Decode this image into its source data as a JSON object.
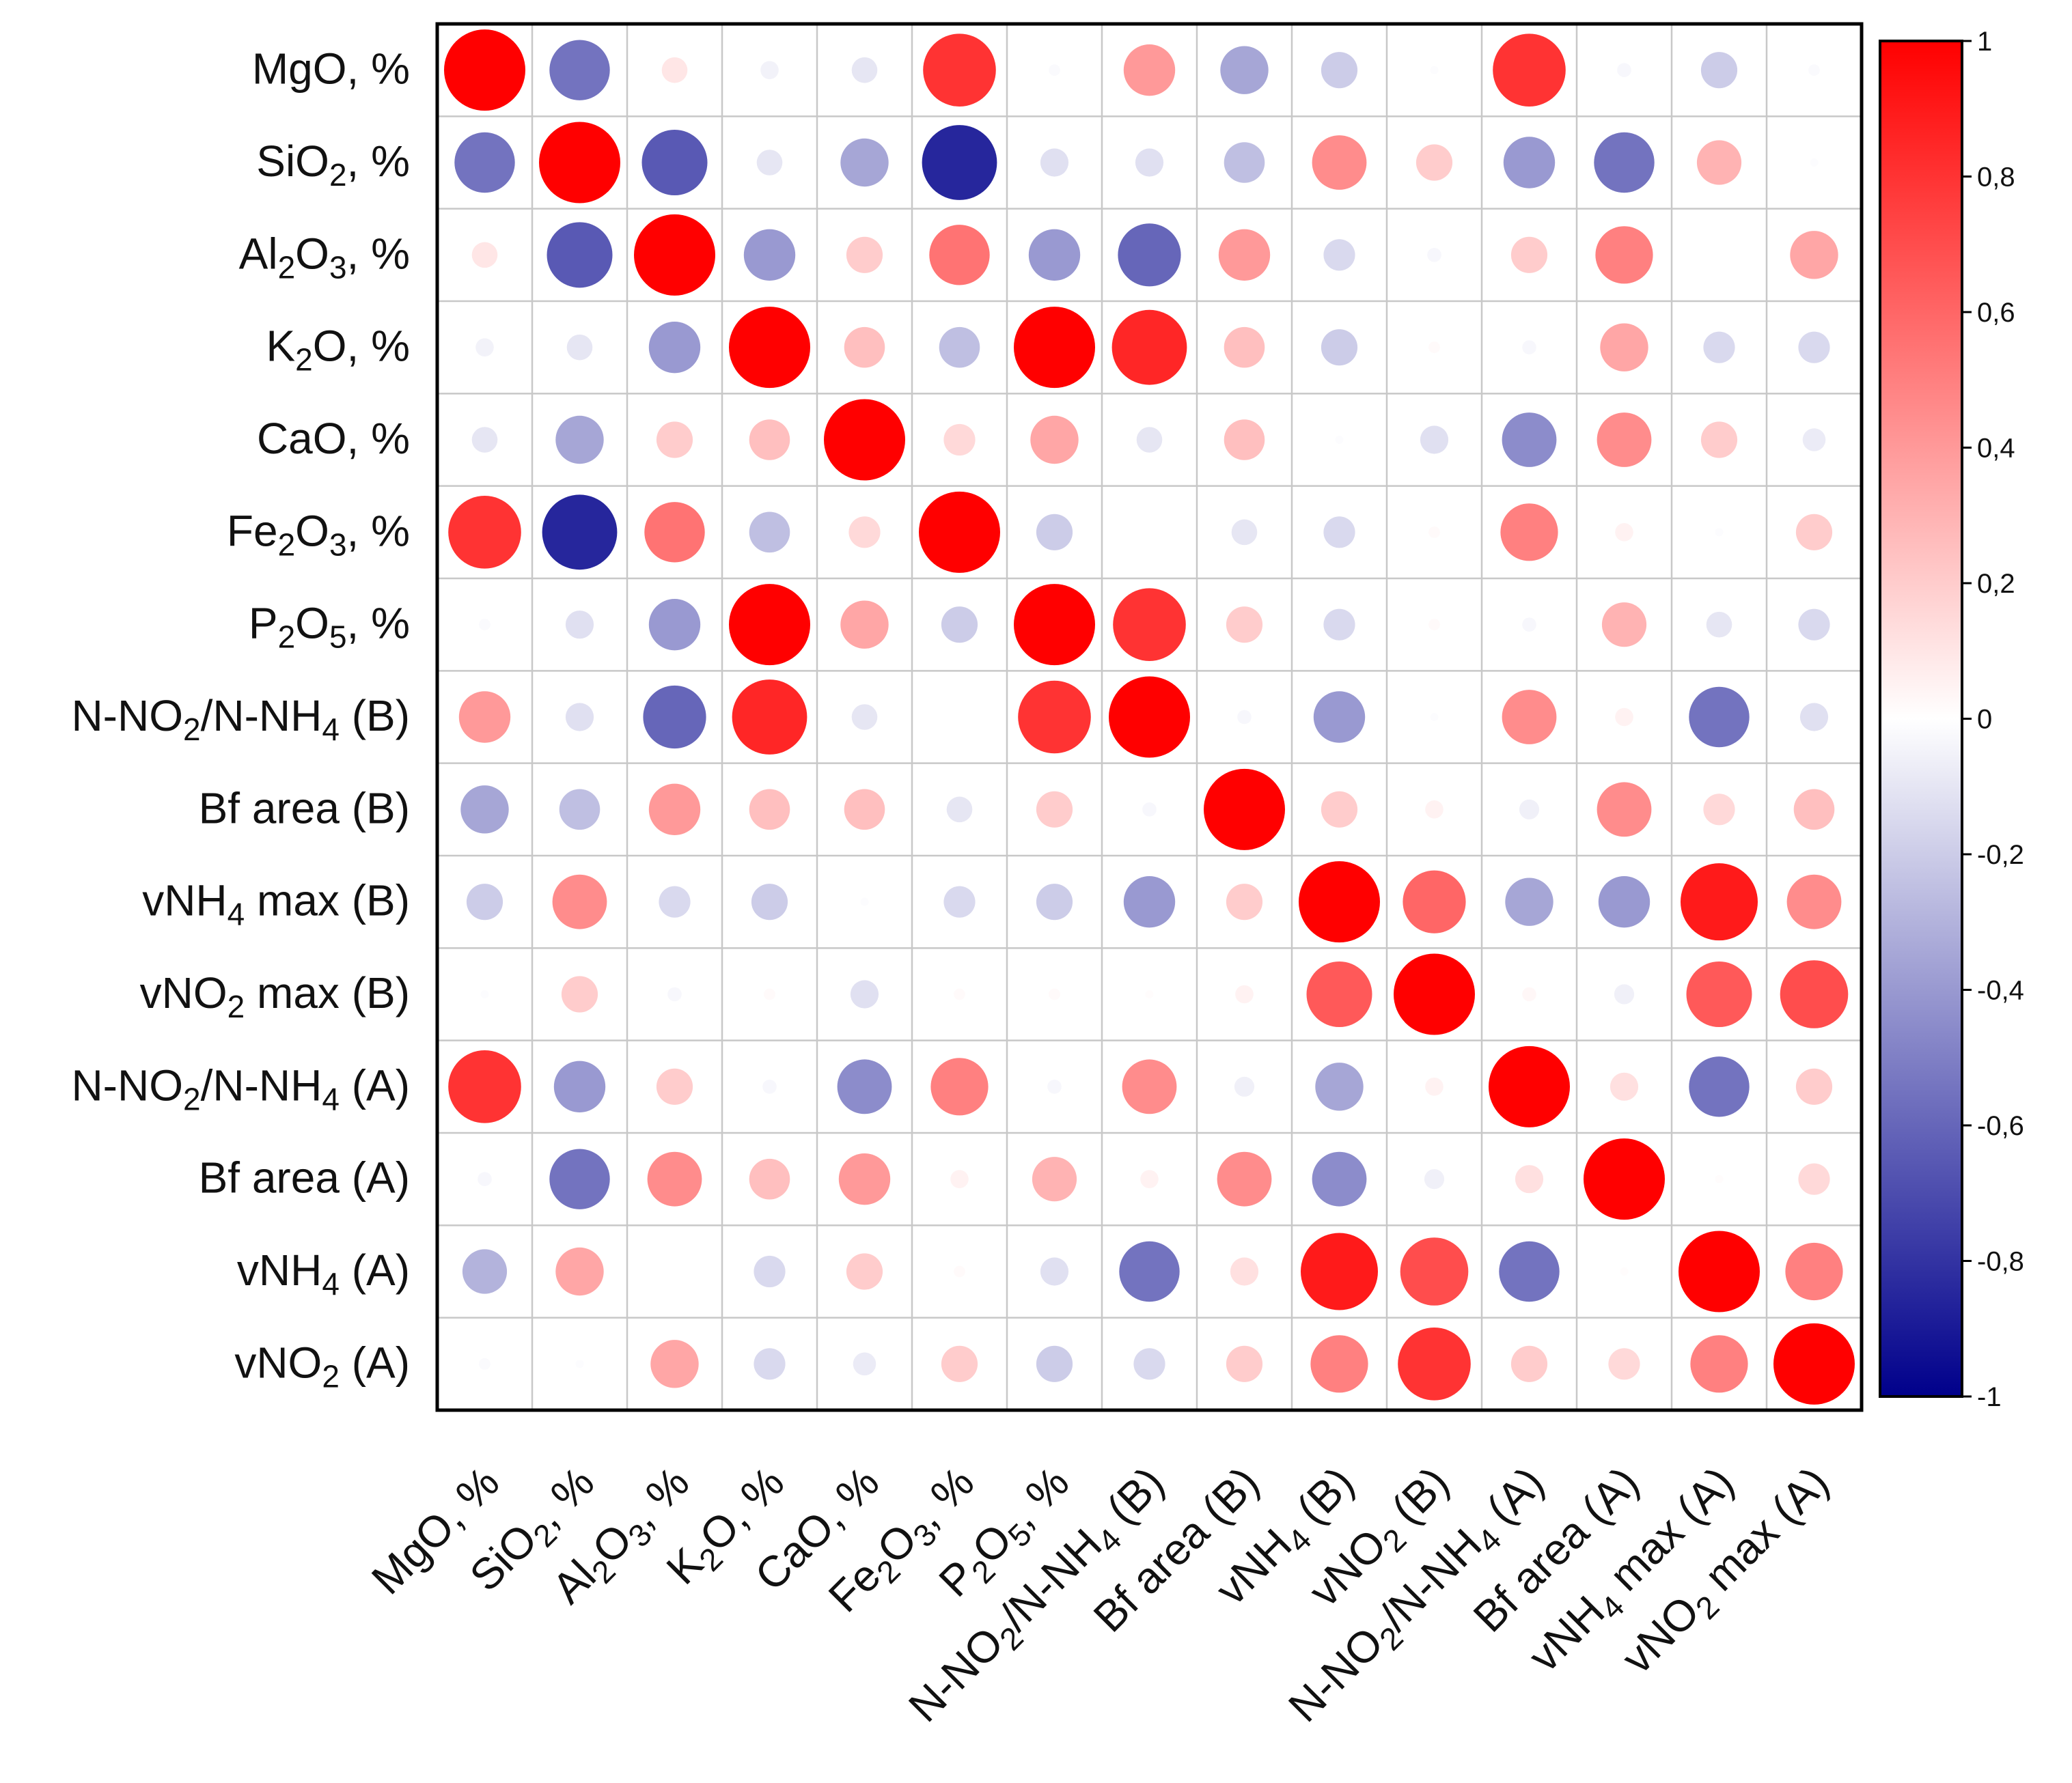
{
  "chart_data": {
    "type": "heatmap",
    "subtype": "correlation-circle-matrix",
    "title": "",
    "row_labels": [
      {
        "base": "MgO, %"
      },
      {
        "parts": [
          [
            "SiO",
            ""
          ],
          [
            "2",
            "sub"
          ],
          [
            ", %",
            ""
          ]
        ]
      },
      {
        "parts": [
          [
            "Al",
            ""
          ],
          [
            "2",
            "sub"
          ],
          [
            "O",
            ""
          ],
          [
            "3",
            "sub"
          ],
          [
            ", %",
            ""
          ]
        ]
      },
      {
        "parts": [
          [
            "K",
            ""
          ],
          [
            "2",
            "sub"
          ],
          [
            "O, %",
            ""
          ]
        ]
      },
      {
        "base": "CaO, %"
      },
      {
        "parts": [
          [
            "Fe",
            ""
          ],
          [
            "2",
            "sub"
          ],
          [
            "O",
            ""
          ],
          [
            "3",
            "sub"
          ],
          [
            ", %",
            ""
          ]
        ]
      },
      {
        "parts": [
          [
            "P",
            ""
          ],
          [
            "2",
            "sub"
          ],
          [
            "O",
            ""
          ],
          [
            "5",
            "sub"
          ],
          [
            ", %",
            ""
          ]
        ]
      },
      {
        "parts": [
          [
            "N-NO",
            ""
          ],
          [
            "2",
            "sub"
          ],
          [
            "/N-NH",
            ""
          ],
          [
            "4",
            "sub"
          ],
          [
            " (B)",
            ""
          ]
        ]
      },
      {
        "base": "Bf area (B)"
      },
      {
        "parts": [
          [
            "vNH",
            ""
          ],
          [
            "4",
            "sub"
          ],
          [
            " max (B)",
            ""
          ]
        ]
      },
      {
        "parts": [
          [
            "vNO",
            ""
          ],
          [
            "2",
            "sub"
          ],
          [
            " max (B)",
            ""
          ]
        ]
      },
      {
        "parts": [
          [
            "N-NO",
            ""
          ],
          [
            "2",
            "sub"
          ],
          [
            "/N-NH",
            ""
          ],
          [
            "4",
            "sub"
          ],
          [
            " (A)",
            ""
          ]
        ]
      },
      {
        "base": "Bf area (A)"
      },
      {
        "parts": [
          [
            "vNH",
            ""
          ],
          [
            "4",
            "sub"
          ],
          [
            " (A)",
            ""
          ]
        ]
      },
      {
        "parts": [
          [
            "vNO",
            ""
          ],
          [
            "2",
            "sub"
          ],
          [
            " (A)",
            ""
          ]
        ]
      }
    ],
    "col_labels": [
      {
        "base": "MgO, %"
      },
      {
        "parts": [
          [
            "SiO",
            ""
          ],
          [
            "2",
            "sub"
          ],
          [
            ", %",
            ""
          ]
        ]
      },
      {
        "parts": [
          [
            "Al",
            ""
          ],
          [
            "2",
            "sub"
          ],
          [
            "O",
            ""
          ],
          [
            "3",
            "sub"
          ],
          [
            ", %",
            ""
          ]
        ]
      },
      {
        "parts": [
          [
            "K",
            ""
          ],
          [
            "2",
            "sub"
          ],
          [
            "O, %",
            ""
          ]
        ]
      },
      {
        "base": "CaO, %"
      },
      {
        "parts": [
          [
            "Fe",
            ""
          ],
          [
            "2",
            "sub"
          ],
          [
            "O",
            ""
          ],
          [
            "3",
            "sub"
          ],
          [
            ", %",
            ""
          ]
        ]
      },
      {
        "parts": [
          [
            "P",
            ""
          ],
          [
            "2",
            "sub"
          ],
          [
            "O",
            ""
          ],
          [
            "5",
            "sub"
          ],
          [
            ", %",
            ""
          ]
        ]
      },
      {
        "parts": [
          [
            "N-NO",
            ""
          ],
          [
            "2",
            "sub"
          ],
          [
            "/N-NH",
            ""
          ],
          [
            "4",
            "sub"
          ],
          [
            " (B)",
            ""
          ]
        ]
      },
      {
        "base": "Bf area (B)"
      },
      {
        "parts": [
          [
            "vNH",
            ""
          ],
          [
            "4",
            "sub"
          ],
          [
            " (B)",
            ""
          ]
        ]
      },
      {
        "parts": [
          [
            "vNO",
            ""
          ],
          [
            "2",
            "sub"
          ],
          [
            " (B)",
            ""
          ]
        ]
      },
      {
        "parts": [
          [
            "N-NO",
            ""
          ],
          [
            "2",
            "sub"
          ],
          [
            "/N-NH",
            ""
          ],
          [
            "4",
            "sub"
          ],
          [
            " (A)",
            ""
          ]
        ]
      },
      {
        "base": "Bf area (A)"
      },
      {
        "parts": [
          [
            "vNH",
            ""
          ],
          [
            "4",
            "sub"
          ],
          [
            " max (A)",
            ""
          ]
        ]
      },
      {
        "parts": [
          [
            "vNO",
            ""
          ],
          [
            "2",
            "sub"
          ],
          [
            " max (A)",
            ""
          ]
        ]
      }
    ],
    "values": [
      [
        1,
        -0.55,
        0.1,
        -0.05,
        -0.1,
        0.8,
        -0.02,
        0.4,
        -0.35,
        -0.2,
        -0.01,
        0.8,
        -0.03,
        -0.2,
        -0.02
      ],
      [
        -0.55,
        1,
        -0.65,
        -0.1,
        -0.35,
        -0.85,
        -0.12,
        -0.12,
        -0.25,
        0.45,
        0.2,
        -0.4,
        -0.55,
        0.3,
        -0.01
      ],
      [
        0.1,
        -0.65,
        1,
        -0.4,
        0.2,
        0.55,
        -0.4,
        -0.6,
        0.4,
        -0.15,
        -0.03,
        0.2,
        0.5,
        0,
        0.35
      ],
      [
        -0.05,
        -0.1,
        -0.4,
        1,
        0.25,
        -0.25,
        1,
        0.85,
        0.25,
        -0.2,
        0.02,
        -0.03,
        0.35,
        -0.15,
        -0.15
      ],
      [
        -0.1,
        -0.35,
        0.2,
        0.25,
        1,
        0.15,
        0.35,
        -0.1,
        0.25,
        -0.01,
        -0.12,
        -0.45,
        0.45,
        0.2,
        -0.08
      ],
      [
        0.8,
        -0.85,
        0.55,
        -0.25,
        0.15,
        1,
        -0.2,
        0,
        -0.1,
        -0.15,
        0.02,
        0.5,
        0.05,
        -0.01,
        0.2
      ],
      [
        -0.02,
        -0.12,
        -0.4,
        1,
        0.35,
        -0.2,
        1,
        0.8,
        0.2,
        -0.15,
        0.02,
        -0.03,
        0.3,
        -0.1,
        -0.15
      ],
      [
        0.4,
        -0.12,
        -0.6,
        0.85,
        -0.1,
        0,
        0.8,
        1,
        -0.03,
        -0.4,
        -0.01,
        0.45,
        0.05,
        -0.55,
        -0.12
      ],
      [
        -0.35,
        -0.25,
        0.4,
        0.25,
        0.25,
        -0.1,
        0.2,
        -0.03,
        1,
        0.2,
        0.05,
        -0.06,
        0.45,
        0.15,
        0.25
      ],
      [
        -0.2,
        0.45,
        -0.15,
        -0.2,
        -0.01,
        -0.15,
        -0.2,
        -0.4,
        0.2,
        1,
        0.6,
        -0.35,
        -0.4,
        0.9,
        0.45
      ],
      [
        -0.01,
        0.2,
        -0.03,
        0.02,
        -0.12,
        0.02,
        0.02,
        0.01,
        0.05,
        0.65,
        1,
        0.03,
        -0.06,
        0.65,
        0.7
      ],
      [
        0.8,
        -0.4,
        0.2,
        -0.03,
        -0.45,
        0.5,
        -0.03,
        0.45,
        -0.06,
        -0.35,
        0.05,
        1,
        0.12,
        -0.55,
        0.2
      ],
      [
        -0.03,
        -0.55,
        0.45,
        0.25,
        0.4,
        0.05,
        0.3,
        0.05,
        0.45,
        -0.45,
        -0.06,
        0.12,
        1,
        0.01,
        0.15
      ],
      [
        -0.3,
        0.35,
        0,
        -0.15,
        0.2,
        0.02,
        -0.12,
        -0.55,
        0.12,
        0.9,
        0.7,
        -0.55,
        0.01,
        1,
        0.5
      ],
      [
        -0.02,
        -0.01,
        0.35,
        -0.15,
        -0.08,
        0.2,
        -0.2,
        -0.15,
        0.2,
        0.5,
        0.8,
        0.2,
        0.15,
        0.5,
        1
      ]
    ],
    "colorbar": {
      "range": [
        -1,
        1
      ],
      "ticks": [
        1,
        0.8,
        0.6,
        0.4,
        0.2,
        0,
        -0.2,
        -0.4,
        -0.6,
        -0.8,
        -1
      ],
      "tick_labels": [
        "1",
        "0,8",
        "0,6",
        "0,4",
        "0,2",
        "0",
        "-0,2",
        "-0,4",
        "-0,6",
        "-0,8",
        "-1"
      ],
      "colors": {
        "positive": "#ff0000",
        "neutral": "#ffffff",
        "negative": "#00008b"
      }
    },
    "grid": true,
    "legend": "right"
  }
}
